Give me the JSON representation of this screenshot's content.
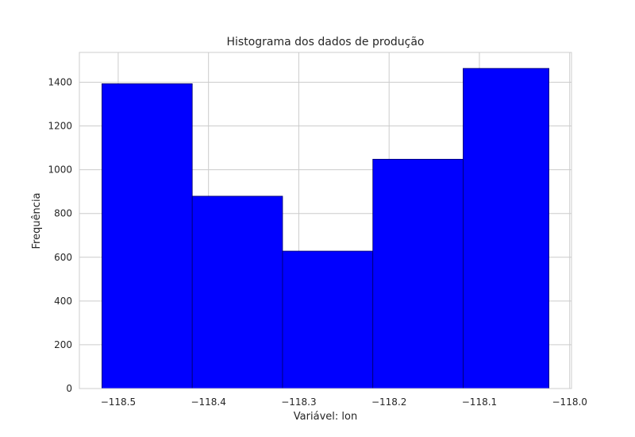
{
  "chart_data": {
    "type": "bar",
    "title": "Histograma dos dados de produção",
    "xlabel": "Variável: lon",
    "ylabel": "Frequência",
    "bins": [
      {
        "start": -118.518,
        "end": -118.418,
        "count": 1393
      },
      {
        "start": -118.418,
        "end": -118.318,
        "count": 879
      },
      {
        "start": -118.318,
        "end": -118.218,
        "count": 628
      },
      {
        "start": -118.218,
        "end": -118.118,
        "count": 1048
      },
      {
        "start": -118.118,
        "end": -118.023,
        "count": 1463
      }
    ],
    "xlim": [
      -118.543,
      -117.998
    ],
    "ylim": [
      0,
      1536
    ],
    "xticks": [
      -118.5,
      -118.4,
      -118.3,
      -118.2,
      -118.1,
      -118.0
    ],
    "xtick_labels": [
      "−118.5",
      "−118.4",
      "−118.3",
      "−118.2",
      "−118.1",
      "−118.0"
    ],
    "yticks": [
      0,
      200,
      400,
      600,
      800,
      1000,
      1200,
      1400
    ],
    "ytick_labels": [
      "0",
      "200",
      "400",
      "600",
      "800",
      "1000",
      "1200",
      "1400"
    ],
    "grid": true,
    "bar_color": "#0000ff",
    "edge_color": "#000066",
    "grid_color": "#cccccc",
    "background": "#ffffff"
  }
}
